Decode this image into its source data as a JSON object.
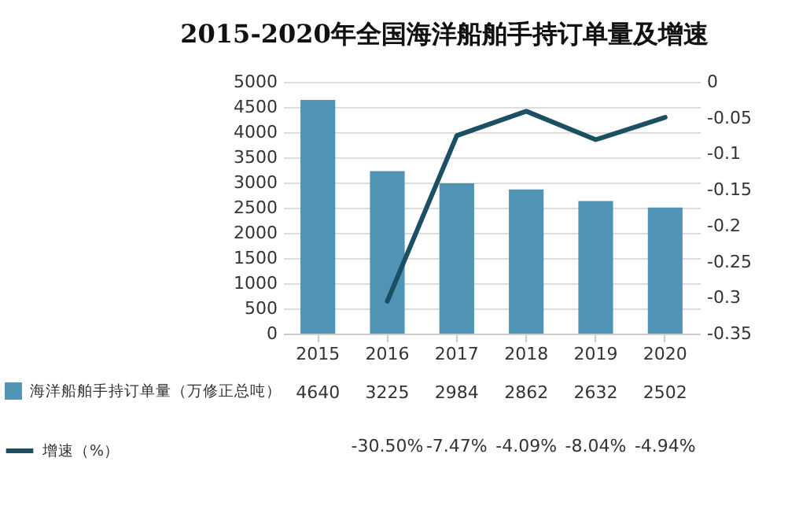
{
  "chart_data": {
    "type": "bar",
    "title": "2015-2020年全国海洋船舶手持订单量及增速",
    "categories": [
      "2015",
      "2016",
      "2017",
      "2018",
      "2019",
      "2020"
    ],
    "series": [
      {
        "name": "海洋船舶手持订单量（万修正总吨）",
        "color": "#4f93b5",
        "values": [
          4640,
          3225,
          2984,
          2862,
          2632,
          2502
        ],
        "value_labels": [
          "4640",
          "3225",
          "2984",
          "2862",
          "2632",
          "2502"
        ]
      },
      {
        "name": "增速（%）",
        "type": "line",
        "axis": "y2",
        "color": "#1b4f63",
        "values": [
          null,
          -0.305,
          -0.0747,
          -0.0409,
          -0.0804,
          -0.0494
        ],
        "value_labels": [
          null,
          "-30.50%",
          "-7.47%",
          "-4.09%",
          "-8.04%",
          "-4.94%"
        ]
      }
    ],
    "ylim": [
      0,
      5000
    ],
    "yticks": [
      0,
      500,
      1000,
      1500,
      2000,
      2500,
      3000,
      3500,
      4000,
      4500,
      5000
    ],
    "y2lim": [
      -0.35,
      0
    ],
    "y2ticks": [
      -0.35,
      -0.3,
      -0.25,
      -0.2,
      -0.15,
      -0.1,
      -0.05,
      0
    ],
    "grid": "y",
    "legend": "bottom",
    "marker": "none",
    "line_style": "solid"
  }
}
